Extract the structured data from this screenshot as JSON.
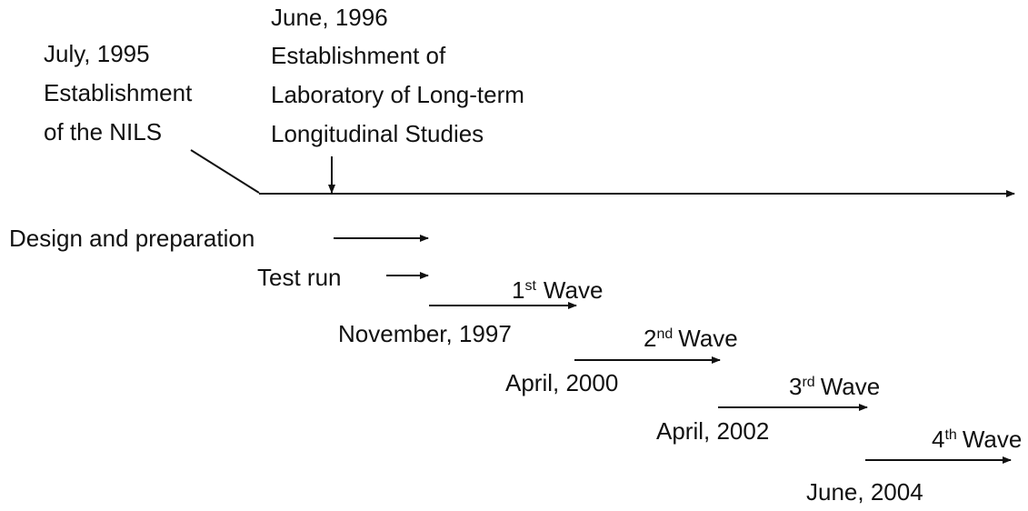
{
  "events": [
    {
      "lines": [
        "July, 1995",
        "Establishment",
        "of the NILS"
      ]
    },
    {
      "lines": [
        "June, 1996",
        "Establishment of",
        "Laboratory of Long-term",
        "Longitudinal Studies"
      ]
    }
  ],
  "phases": [
    {
      "label": "Design and preparation"
    },
    {
      "label": "Test run"
    }
  ],
  "waves": [
    {
      "number": "1",
      "suffix": "st",
      "label": "Wave",
      "date": "November, 1997"
    },
    {
      "number": "2",
      "suffix": "nd",
      "label": "Wave",
      "date": "April, 2000"
    },
    {
      "number": "3",
      "suffix": "rd",
      "label": "Wave",
      "date": "April, 2002"
    },
    {
      "number": "4",
      "suffix": "th",
      "label": "Wave",
      "date": "June, 2004"
    }
  ]
}
